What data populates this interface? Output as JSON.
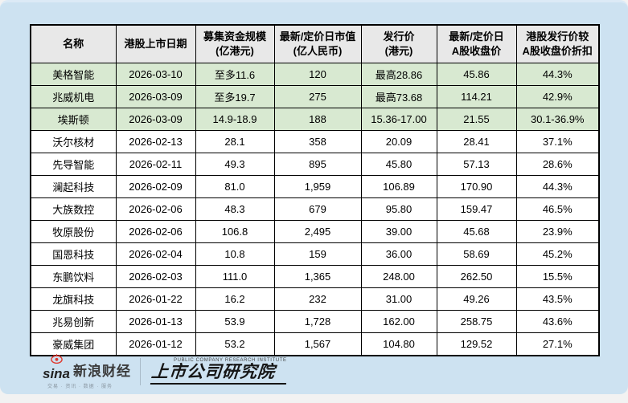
{
  "colors": {
    "card_bg": "#cde2f1",
    "header_bg": "#e8e8e8",
    "highlight_row_bg": "#d8e9d1",
    "row_bg": "#ffffff",
    "border": "#000000",
    "sina_red": "#e0392e"
  },
  "chart_data": {
    "type": "table",
    "columns": [
      "名称",
      "港股上市日期",
      "募集资金规模(亿港元)",
      "最新/定价日市值(亿人民币)",
      "发行价(港元)",
      "最新/定价日A股收盘价",
      "港股发行价较A股收盘价折扣"
    ],
    "header_lines": [
      [
        "名称"
      ],
      [
        "港股上市日期"
      ],
      [
        "募集资金规模",
        "(亿港元)"
      ],
      [
        "最新/定价日市值",
        "(亿人民币)"
      ],
      [
        "发行价",
        "(港元)"
      ],
      [
        "最新/定价日",
        "A股收盘价"
      ],
      [
        "港股发行价较",
        "A股收盘价折扣"
      ]
    ],
    "col_keys": [
      "name",
      "list_date",
      "raise_scale",
      "market_cap",
      "issue_price",
      "a_share_close",
      "discount"
    ],
    "rows": [
      [
        "美格智能",
        "2026-03-10",
        "至多11.6",
        "120",
        "最高28.86",
        "45.86",
        "44.3%"
      ],
      [
        "兆威机电",
        "2026-03-09",
        "至多19.7",
        "275",
        "最高73.68",
        "114.21",
        "42.9%"
      ],
      [
        "埃斯顿",
        "2026-03-09",
        "14.9-18.9",
        "188",
        "15.36-17.00",
        "21.55",
        "30.1-36.9%"
      ],
      [
        "沃尔核材",
        "2026-02-13",
        "28.1",
        "358",
        "20.09",
        "28.41",
        "37.1%"
      ],
      [
        "先导智能",
        "2026-02-11",
        "49.3",
        "895",
        "45.80",
        "57.13",
        "28.6%"
      ],
      [
        "澜起科技",
        "2026-02-09",
        "81.0",
        "1,959",
        "106.89",
        "170.90",
        "44.3%"
      ],
      [
        "大族数控",
        "2026-02-06",
        "48.3",
        "679",
        "95.80",
        "159.47",
        "46.5%"
      ],
      [
        "牧原股份",
        "2026-02-06",
        "106.8",
        "2,495",
        "39.00",
        "45.68",
        "23.9%"
      ],
      [
        "国恩科技",
        "2026-02-04",
        "10.8",
        "159",
        "36.00",
        "58.69",
        "45.2%"
      ],
      [
        "东鹏饮料",
        "2026-02-03",
        "111.0",
        "1,365",
        "248.00",
        "262.50",
        "15.5%"
      ],
      [
        "龙旗科技",
        "2026-01-22",
        "16.2",
        "232",
        "31.00",
        "49.26",
        "43.5%"
      ],
      [
        "兆易创新",
        "2026-01-13",
        "53.9",
        "1,728",
        "162.00",
        "258.75",
        "43.6%"
      ],
      [
        "豪威集团",
        "2026-01-12",
        "53.2",
        "1,567",
        "104.80",
        "129.52",
        "27.1%"
      ]
    ],
    "highlighted_rows": [
      0,
      1,
      2
    ]
  },
  "footer": {
    "sina_latin": "sina",
    "sina_cn": "新浪财经",
    "sina_tagline": "交易 · 资讯 · 数据 · 服务",
    "institute_en": "PUBLIC COMPANY RESEARCH INSTITUTE",
    "institute_cn": "上市公司研究院"
  }
}
